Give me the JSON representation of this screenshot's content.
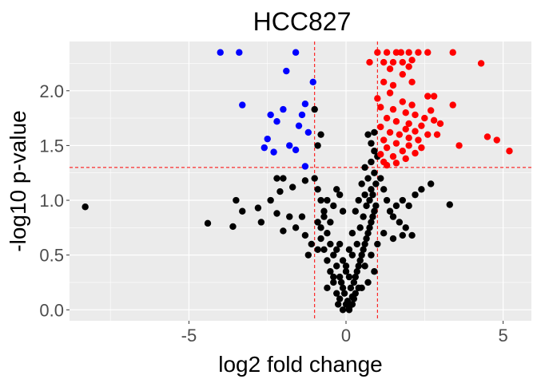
{
  "chart_data": {
    "type": "scatter",
    "title": "HCC827",
    "xlabel": "log2 fold change",
    "ylabel": "-log10 p-value",
    "xlim": [
      -8.8,
      5.9
    ],
    "ylim": [
      -0.1,
      2.45
    ],
    "x_ticks": [
      -5,
      0,
      5
    ],
    "x_tick_labels": [
      "-5",
      "0",
      "5"
    ],
    "y_ticks": [
      0.0,
      0.5,
      1.0,
      1.5,
      2.0
    ],
    "y_tick_labels": [
      "0.0",
      "0.5",
      "1.0",
      "1.5",
      "2.0"
    ],
    "grid": true,
    "legend": "none",
    "background": "#ebebeb",
    "thresholds": {
      "x": [
        -1,
        1
      ],
      "y": 1.3,
      "color": "#ff0000"
    },
    "colors": {
      "down": "#0000ff",
      "up": "#ff0000",
      "ns": "#000000"
    },
    "series": [
      {
        "group": "down",
        "points": [
          [
            -4.0,
            2.35
          ],
          [
            -3.4,
            2.35
          ],
          [
            -1.6,
            2.35
          ],
          [
            -1.9,
            2.18
          ],
          [
            -1.05,
            2.08
          ],
          [
            -3.3,
            1.87
          ],
          [
            -1.3,
            1.88
          ],
          [
            -2.0,
            1.83
          ],
          [
            -1.4,
            1.78
          ],
          [
            -2.4,
            1.78
          ],
          [
            -2.2,
            1.72
          ],
          [
            -1.5,
            1.68
          ],
          [
            -1.2,
            1.62
          ],
          [
            -2.5,
            1.56
          ],
          [
            -1.8,
            1.5
          ],
          [
            -2.6,
            1.48
          ],
          [
            -2.3,
            1.44
          ],
          [
            -1.6,
            1.46
          ],
          [
            -1.3,
            1.31
          ]
        ]
      },
      {
        "group": "up",
        "points": [
          [
            1.0,
            2.35
          ],
          [
            1.3,
            2.35
          ],
          [
            1.6,
            2.35
          ],
          [
            1.75,
            2.35
          ],
          [
            2.0,
            2.35
          ],
          [
            2.3,
            2.35
          ],
          [
            2.6,
            2.35
          ],
          [
            3.4,
            2.35
          ],
          [
            0.75,
            2.26
          ],
          [
            1.2,
            2.26
          ],
          [
            1.5,
            2.26
          ],
          [
            1.8,
            2.26
          ],
          [
            2.1,
            2.28
          ],
          [
            2.0,
            2.22
          ],
          [
            4.3,
            2.25
          ],
          [
            1.4,
            2.2
          ],
          [
            1.8,
            2.15
          ],
          [
            2.1,
            2.08
          ],
          [
            1.2,
            2.08
          ],
          [
            1.5,
            2.05
          ],
          [
            1.4,
            1.98
          ],
          [
            2.6,
            1.95
          ],
          [
            2.8,
            1.95
          ],
          [
            1.0,
            1.93
          ],
          [
            1.8,
            1.9
          ],
          [
            2.1,
            1.87
          ],
          [
            3.4,
            1.87
          ],
          [
            1.1,
            1.85
          ],
          [
            1.5,
            1.83
          ],
          [
            2.7,
            1.82
          ],
          [
            1.9,
            1.8
          ],
          [
            2.2,
            1.78
          ],
          [
            2.5,
            1.75
          ],
          [
            2.8,
            1.73
          ],
          [
            1.3,
            1.75
          ],
          [
            1.6,
            1.72
          ],
          [
            2.0,
            1.7
          ],
          [
            2.4,
            1.68
          ],
          [
            3.0,
            1.7
          ],
          [
            1.1,
            1.67
          ],
          [
            1.9,
            1.65
          ],
          [
            2.2,
            1.63
          ],
          [
            2.6,
            1.6
          ],
          [
            1.4,
            1.62
          ],
          [
            1.7,
            1.6
          ],
          [
            2.0,
            1.57
          ],
          [
            2.3,
            1.55
          ],
          [
            2.9,
            1.6
          ],
          [
            4.5,
            1.58
          ],
          [
            4.8,
            1.55
          ],
          [
            1.2,
            1.55
          ],
          [
            1.6,
            1.52
          ],
          [
            2.0,
            1.5
          ],
          [
            2.4,
            1.48
          ],
          [
            3.6,
            1.5
          ],
          [
            1.3,
            1.48
          ],
          [
            1.8,
            1.45
          ],
          [
            2.2,
            1.43
          ],
          [
            5.2,
            1.45
          ],
          [
            1.1,
            1.42
          ],
          [
            1.5,
            1.4
          ],
          [
            1.9,
            1.38
          ],
          [
            1.2,
            1.35
          ],
          [
            1.3,
            1.32
          ],
          [
            1.6,
            1.34
          ]
        ]
      },
      {
        "group": "ns",
        "points": [
          [
            -8.3,
            0.94
          ],
          [
            -4.4,
            0.79
          ],
          [
            -3.6,
            0.76
          ],
          [
            -3.3,
            0.9
          ],
          [
            -2.8,
            0.93
          ],
          [
            -2.7,
            0.8
          ],
          [
            -2.2,
            0.88
          ],
          [
            -1.8,
            0.85
          ],
          [
            -1.4,
            0.85
          ],
          [
            -2.0,
            0.72
          ],
          [
            -1.6,
            0.75
          ],
          [
            -1.3,
            0.68
          ],
          [
            -2.4,
            1.0
          ],
          [
            -2.1,
            1.08
          ],
          [
            -1.7,
            1.12
          ],
          [
            -1.3,
            1.18
          ],
          [
            -1.0,
            1.83
          ],
          [
            -0.8,
            1.6
          ],
          [
            -0.9,
            1.5
          ],
          [
            -2.0,
            1.2
          ],
          [
            -2.2,
            1.2
          ],
          [
            -3.5,
            1.0
          ],
          [
            -1.0,
            1.2
          ],
          [
            -0.9,
            1.1
          ],
          [
            -0.8,
            1.0
          ],
          [
            -0.7,
            0.85
          ],
          [
            -0.9,
            0.8
          ],
          [
            -0.6,
            0.7
          ],
          [
            -0.8,
            0.65
          ],
          [
            -0.5,
            0.6
          ],
          [
            -0.7,
            0.55
          ],
          [
            -0.4,
            0.5
          ],
          [
            -0.6,
            0.45
          ],
          [
            -0.3,
            0.4
          ],
          [
            -0.5,
            0.35
          ],
          [
            -0.2,
            0.3
          ],
          [
            -0.4,
            0.25
          ],
          [
            -0.1,
            0.2
          ],
          [
            -0.3,
            0.15
          ],
          [
            -0.2,
            0.1
          ],
          [
            0.0,
            0.05
          ],
          [
            0.1,
            0.02
          ],
          [
            -0.1,
            0.0
          ],
          [
            0.05,
            0.08
          ],
          [
            0.2,
            0.12
          ],
          [
            -0.05,
            0.15
          ],
          [
            0.15,
            0.2
          ],
          [
            0.25,
            0.25
          ],
          [
            0.3,
            0.3
          ],
          [
            0.35,
            0.35
          ],
          [
            0.4,
            0.4
          ],
          [
            0.45,
            0.45
          ],
          [
            0.5,
            0.5
          ],
          [
            0.55,
            0.55
          ],
          [
            0.6,
            0.6
          ],
          [
            0.65,
            0.65
          ],
          [
            0.7,
            0.7
          ],
          [
            0.75,
            0.75
          ],
          [
            0.8,
            0.8
          ],
          [
            0.85,
            0.85
          ],
          [
            0.9,
            0.9
          ],
          [
            0.95,
            0.95
          ],
          [
            0.4,
            1.0
          ],
          [
            0.6,
            1.05
          ],
          [
            0.8,
            1.1
          ],
          [
            0.5,
            1.15
          ],
          [
            0.7,
            1.2
          ],
          [
            0.9,
            1.25
          ],
          [
            0.3,
            0.9
          ],
          [
            0.2,
            0.7
          ],
          [
            0.1,
            0.55
          ],
          [
            0.0,
            0.4
          ],
          [
            0.2,
            0.5
          ],
          [
            0.35,
            0.6
          ],
          [
            0.45,
            0.75
          ],
          [
            0.55,
            0.85
          ],
          [
            0.65,
            0.95
          ],
          [
            0.75,
            1.0
          ],
          [
            0.85,
            1.05
          ],
          [
            0.95,
            1.15
          ],
          [
            1.1,
            1.2
          ],
          [
            1.2,
            1.1
          ],
          [
            1.3,
            1.0
          ],
          [
            1.4,
            0.9
          ],
          [
            1.5,
            0.85
          ],
          [
            1.6,
            0.95
          ],
          [
            1.8,
            1.0
          ],
          [
            2.0,
            0.95
          ],
          [
            2.2,
            1.05
          ],
          [
            1.7,
            0.8
          ],
          [
            1.9,
            0.75
          ],
          [
            1.2,
            0.7
          ],
          [
            1.5,
            0.65
          ],
          [
            1.8,
            0.68
          ],
          [
            2.1,
            0.68
          ],
          [
            2.4,
            1.1
          ],
          [
            2.7,
            1.15
          ],
          [
            3.3,
            0.96
          ],
          [
            1.0,
            0.6
          ],
          [
            0.8,
            0.5
          ],
          [
            0.6,
            0.4
          ],
          [
            0.9,
            0.35
          ],
          [
            0.7,
            0.25
          ],
          [
            0.5,
            0.2
          ],
          [
            0.3,
            0.15
          ],
          [
            0.6,
            1.3
          ],
          [
            0.8,
            1.35
          ],
          [
            0.9,
            1.45
          ],
          [
            0.8,
            1.52
          ],
          [
            1.0,
            1.4
          ],
          [
            0.7,
            1.6
          ],
          [
            0.9,
            1.62
          ],
          [
            -0.3,
            1.1
          ],
          [
            -0.2,
            1.05
          ],
          [
            -0.1,
            0.9
          ],
          [
            -0.4,
            0.95
          ],
          [
            -0.5,
            0.8
          ],
          [
            -0.2,
            0.6
          ],
          [
            -0.3,
            0.55
          ],
          [
            -0.1,
            0.45
          ],
          [
            0.0,
            0.35
          ],
          [
            0.1,
            0.3
          ],
          [
            -0.15,
            0.25
          ],
          [
            0.25,
            0.1
          ],
          [
            -0.25,
            0.05
          ],
          [
            0.1,
            0.0
          ],
          [
            -0.4,
            0.3
          ],
          [
            -0.6,
            0.2
          ],
          [
            0.4,
            0.2
          ],
          [
            0.2,
            0.05
          ],
          [
            -0.7,
            0.9
          ],
          [
            -0.6,
            1.0
          ],
          [
            -0.8,
            0.75
          ],
          [
            -1.1,
            0.6
          ],
          [
            -1.2,
            0.5
          ],
          [
            -0.9,
            0.55
          ]
        ]
      }
    ]
  }
}
